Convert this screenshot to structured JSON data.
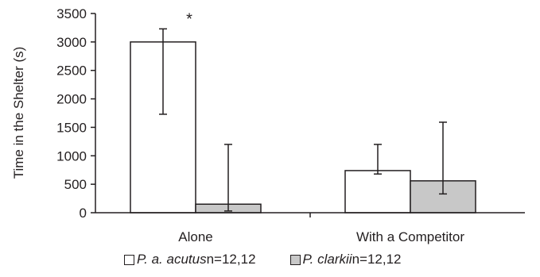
{
  "chart_data": {
    "type": "bar",
    "title": "",
    "xlabel": "",
    "ylabel": "Time in the Shelter (s)",
    "ylim": [
      0,
      3500
    ],
    "yticks": [
      0,
      500,
      1000,
      1500,
      2000,
      2500,
      3000,
      3500
    ],
    "categories": [
      "Alone",
      "With a Competitor"
    ],
    "series": [
      {
        "name": "P. a. acutus",
        "n": "n=12,12",
        "color": "#ffffff",
        "values": [
          3000,
          740
        ],
        "error_low": [
          1730,
          680
        ],
        "error_high": [
          3230,
          1200
        ]
      },
      {
        "name": "P. clarkii",
        "n": "n=12,12",
        "color": "#c8c8c8",
        "values": [
          150,
          560
        ],
        "error_low": [
          30,
          330
        ],
        "error_high": [
          1200,
          1590
        ]
      }
    ],
    "annotations": [
      {
        "category": "Alone",
        "text": "*"
      }
    ],
    "grid": false,
    "legend_position": "bottom"
  }
}
